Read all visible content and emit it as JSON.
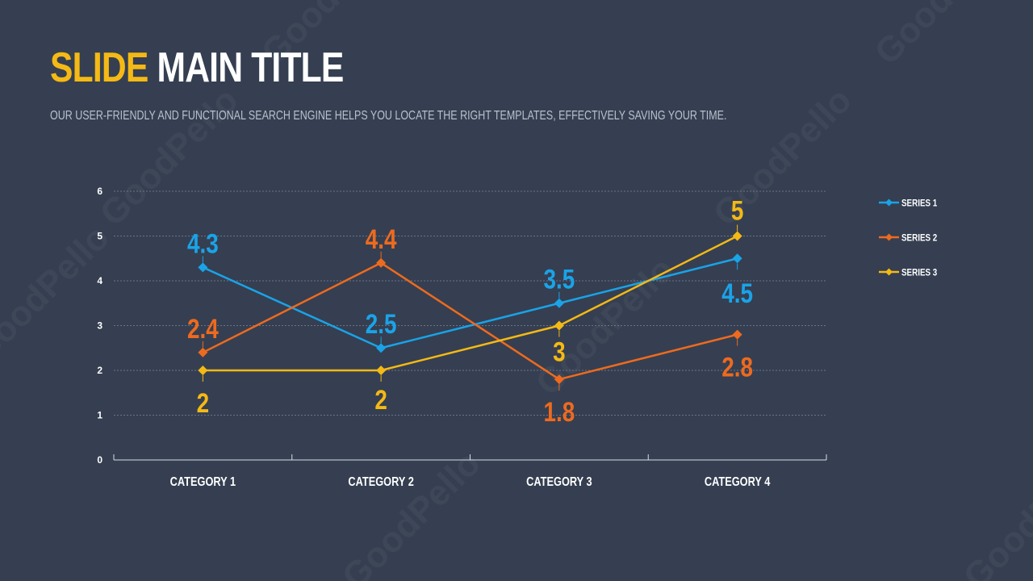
{
  "slide": {
    "title_accent": "SLIDE",
    "title_rest": "MAIN TITLE",
    "subtitle": "OUR USER-FRIENDLY AND FUNCTIONAL SEARCH ENGINE HELPS YOU LOCATE THE RIGHT TEMPLATES, EFFECTIVELY SAVING YOUR TIME.",
    "watermark_text": "GoodPello"
  },
  "colors": {
    "background": "#353f51",
    "accent": "#f5b915",
    "series_1": "#1aa3e8",
    "series_2": "#ee6a1e",
    "series_3": "#f5b915",
    "axis": "#d9dde3",
    "grid": "#7d8797"
  },
  "chart_data": {
    "type": "line",
    "title": "",
    "xlabel": "",
    "ylabel": "",
    "categories": [
      "CATEGORY 1",
      "CATEGORY 2",
      "CATEGORY 3",
      "CATEGORY 4"
    ],
    "ylim": [
      0,
      6
    ],
    "yticks": [
      "0",
      "1",
      "2",
      "3",
      "4",
      "5",
      "6"
    ],
    "grid": true,
    "legend_position": "right",
    "marker": "diamond",
    "series": [
      {
        "name": "SERIES 1",
        "values": [
          4.3,
          2.5,
          3.5,
          4.5
        ],
        "labels": [
          "4.3",
          "2.5",
          "3.5",
          "4.5"
        ]
      },
      {
        "name": "SERIES 2",
        "values": [
          2.4,
          4.4,
          1.8,
          2.8
        ],
        "labels": [
          "2.4",
          "4.4",
          "1.8",
          "2.8"
        ]
      },
      {
        "name": "SERIES 3",
        "values": [
          2,
          2,
          3,
          5
        ],
        "labels": [
          "2",
          "2",
          "3",
          "5"
        ]
      }
    ]
  }
}
